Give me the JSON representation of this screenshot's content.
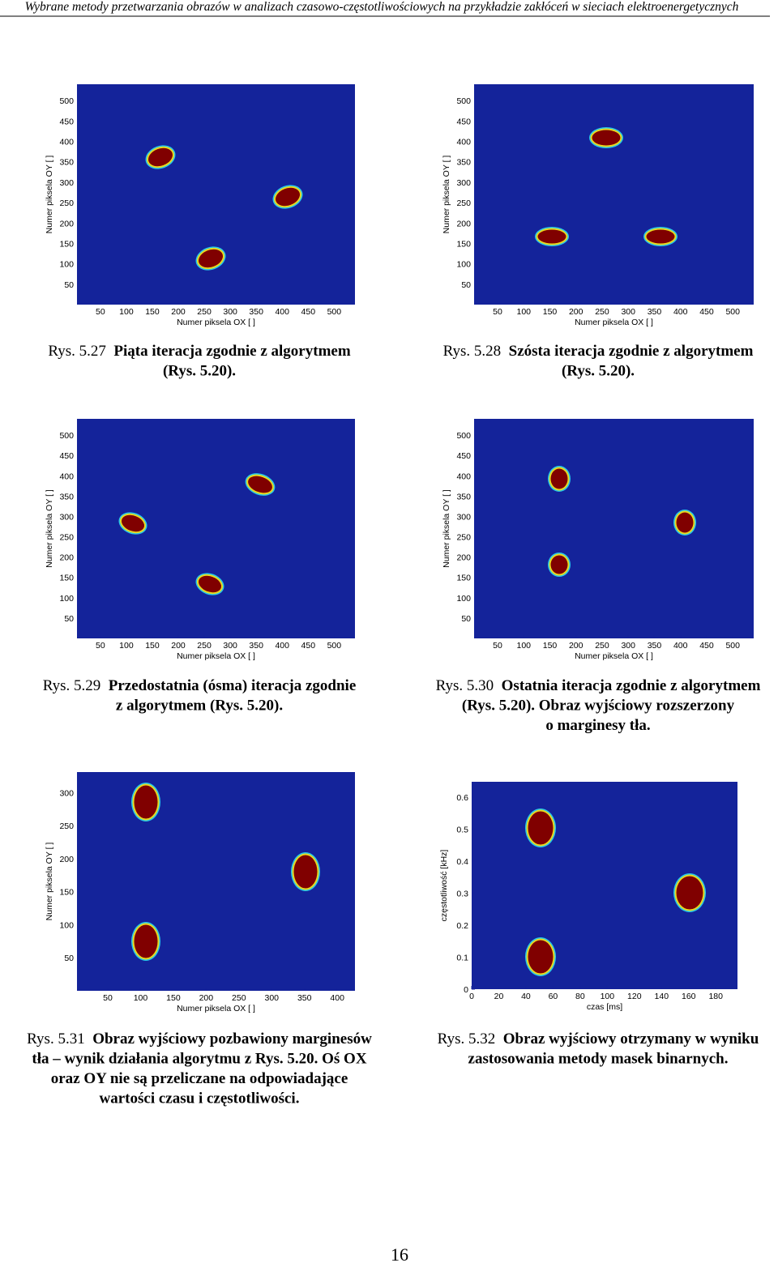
{
  "header": "Wybrane metody przetwarzania obrazów w analizach czasowo-częstotliwościowych na przykładzie zakłóceń w sieciach elektroenergetycznych",
  "figures": [
    {
      "xlabel": "Numer piksela OX [ ]",
      "ylabel": "Numer piksela OY [ ]",
      "xlim": [
        5,
        540
      ],
      "ylim": [
        0,
        540
      ],
      "xticks": [
        50,
        100,
        150,
        200,
        250,
        300,
        350,
        400,
        450,
        500
      ],
      "yticks": [
        50,
        100,
        150,
        200,
        250,
        300,
        350,
        400,
        450,
        500
      ],
      "caption": {
        "label": "Rys. 5.27",
        "lines": [
          "Piąta iteracja zgodnie z algorytmem",
          "(Rys. 5.20)."
        ]
      }
    },
    {
      "xlabel": "Numer piksela OX [ ]",
      "ylabel": "Numer piksela OY [ ]",
      "xlim": [
        5,
        540
      ],
      "ylim": [
        0,
        540
      ],
      "xticks": [
        50,
        100,
        150,
        200,
        250,
        300,
        350,
        400,
        450,
        500
      ],
      "yticks": [
        50,
        100,
        150,
        200,
        250,
        300,
        350,
        400,
        450,
        500
      ],
      "caption": {
        "label": "Rys. 5.28",
        "lines": [
          "Szósta iteracja zgodnie z algorytmem",
          "(Rys. 5.20)."
        ]
      }
    },
    {
      "xlabel": "Numer piksela OX [ ]",
      "ylabel": "Numer piksela OY [ ]",
      "xlim": [
        5,
        540
      ],
      "ylim": [
        0,
        540
      ],
      "xticks": [
        50,
        100,
        150,
        200,
        250,
        300,
        350,
        400,
        450,
        500
      ],
      "yticks": [
        50,
        100,
        150,
        200,
        250,
        300,
        350,
        400,
        450,
        500
      ],
      "caption": {
        "label": "Rys. 5.29",
        "lines": [
          "Przedostatnia (ósma) iteracja zgodnie",
          "z algorytmem (Rys. 5.20)."
        ]
      }
    },
    {
      "xlabel": "Numer piksela OX [ ]",
      "ylabel": "Numer piksela OY [ ]",
      "xlim": [
        5,
        540
      ],
      "ylim": [
        0,
        540
      ],
      "xticks": [
        50,
        100,
        150,
        200,
        250,
        300,
        350,
        400,
        450,
        500
      ],
      "yticks": [
        50,
        100,
        150,
        200,
        250,
        300,
        350,
        400,
        450,
        500
      ],
      "caption": {
        "label": "Rys. 5.30",
        "lines": [
          "Ostatnia iteracja zgodnie z algorytmem",
          "(Rys. 5.20). Obraz wyjściowy rozszerzony",
          "o marginesy tła."
        ]
      }
    },
    {
      "xlabel": "Numer piksela OX [ ]",
      "ylabel": "Numer piksela OY [ ]",
      "xlim": [
        3,
        427
      ],
      "ylim": [
        0,
        331
      ],
      "xticks": [
        50,
        100,
        150,
        200,
        250,
        300,
        350,
        400
      ],
      "yticks": [
        50,
        100,
        150,
        200,
        250,
        300
      ],
      "caption": {
        "label": "Rys. 5.31",
        "lines": [
          "Obraz wyjściowy pozbawiony marginesów",
          "tła – wynik działania algorytmu z Rys. 5.20. Oś OX",
          "oraz OY nie są przeliczane na odpowiadające",
          "wartości czasu i częstotliwości."
        ]
      }
    },
    {
      "xlabel": "czas [ms]",
      "ylabel": "częstotliwość [kHz]",
      "xlim": [
        0,
        196
      ],
      "ylim": [
        0,
        0.648
      ],
      "xticks": [
        0,
        20,
        40,
        60,
        80,
        100,
        120,
        140,
        160,
        180
      ],
      "yticks": [
        0,
        0.1,
        0.2,
        0.3,
        0.4,
        0.5,
        0.6
      ],
      "caption": {
        "label": "Rys. 5.32",
        "lines": [
          "Obraz wyjściowy otrzymany w wyniku",
          "zastosowania metody masek binarnych."
        ]
      }
    }
  ],
  "page_number": "16"
}
